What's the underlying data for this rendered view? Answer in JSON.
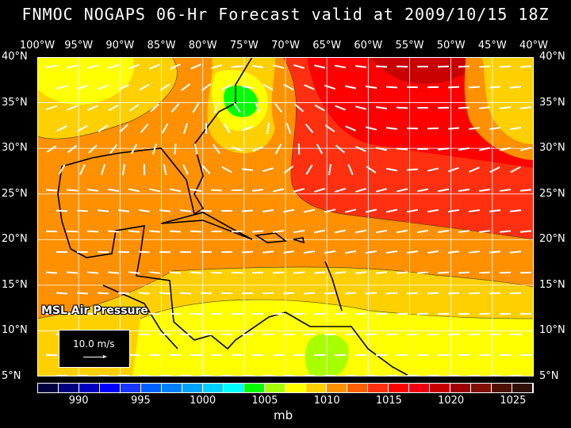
{
  "title": "FNMOC NOGAPS 06-Hr Forecast valid at 2009/10/15 18Z",
  "lon_labels": [
    "100°W",
    "95°W",
    "90°W",
    "85°W",
    "80°W",
    "75°W",
    "70°W",
    "65°W",
    "60°W",
    "55°W",
    "50°W",
    "45°W",
    "40°W"
  ],
  "lat_labels": [
    "40°N",
    "35°N",
    "30°N",
    "25°N",
    "20°N",
    "15°N",
    "10°N",
    "5°N"
  ],
  "field_label": "MSL Air Pressure",
  "wind_scale": "10.0 m/s",
  "colorbar": {
    "colors": [
      "#000040",
      "#000080",
      "#0000c0",
      "#0000ff",
      "#1838ff",
      "#0060ff",
      "#0080ff",
      "#00a4ff",
      "#00d0ff",
      "#00ffff",
      "#00ff00",
      "#a8ff00",
      "#ffff00",
      "#ffd000",
      "#ff9000",
      "#ff6000",
      "#ff3010",
      "#ff0000",
      "#f00010",
      "#c80000",
      "#a00000",
      "#801000",
      "#501000",
      "#301008"
    ],
    "labels": [
      "990",
      "995",
      "1000",
      "1005",
      "1010",
      "1015",
      "1020",
      "1025"
    ],
    "unit": "mb"
  }
}
